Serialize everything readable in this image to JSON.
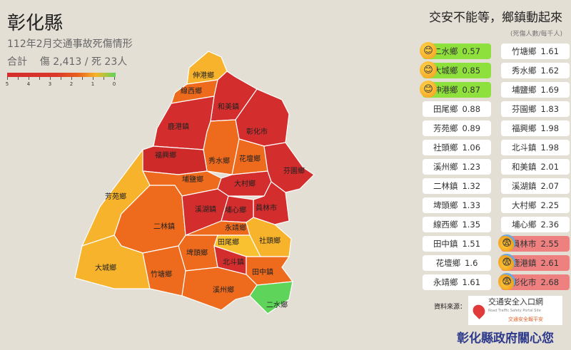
{
  "header": {
    "title": "彰化縣",
    "subtitle": "112年2月交通事故死傷情形",
    "total_label": "合計",
    "total_value": "傷 2,413 / 死 23人"
  },
  "legend": {
    "ticks": [
      "5",
      "4",
      "3",
      "2",
      "1",
      "0"
    ],
    "colors": [
      "#d42d2d",
      "#e8601e",
      "#f6b52a",
      "#5fd45a"
    ]
  },
  "slogan": "交安不能等，鄉鎮動起來",
  "unit": "(死傷人數/每千人)",
  "left_list": [
    {
      "name": "二水鄉",
      "value": "0.57",
      "status": "good"
    },
    {
      "name": "大城鄉",
      "value": "0.85",
      "status": "good"
    },
    {
      "name": "伸港鄉",
      "value": "0.87",
      "status": "good"
    },
    {
      "name": "田尾鄉",
      "value": "0.88"
    },
    {
      "name": "芳苑鄉",
      "value": "0.89"
    },
    {
      "name": "社頭鄉",
      "value": "1.06"
    },
    {
      "name": "溪州鄉",
      "value": "1.23"
    },
    {
      "name": "二林鎮",
      "value": "1.32"
    },
    {
      "name": "埤頭鄉",
      "value": "1.33"
    },
    {
      "name": "線西鄉",
      "value": "1.35"
    },
    {
      "name": "田中鎮",
      "value": "1.51"
    },
    {
      "name": "花壇鄉",
      "value": "1.6"
    },
    {
      "name": "永靖鄉",
      "value": "1.61"
    }
  ],
  "right_list": [
    {
      "name": "竹塘鄉",
      "value": "1.61"
    },
    {
      "name": "秀水鄉",
      "value": "1.62"
    },
    {
      "name": "埔鹽鄉",
      "value": "1.69"
    },
    {
      "name": "芬園鄉",
      "value": "1.83"
    },
    {
      "name": "福興鄉",
      "value": "1.98"
    },
    {
      "name": "北斗鎮",
      "value": "1.98"
    },
    {
      "name": "和美鎮",
      "value": "2.01"
    },
    {
      "name": "溪湖鎮",
      "value": "2.07"
    },
    {
      "name": "大村鄉",
      "value": "2.25"
    },
    {
      "name": "埔心鄉",
      "value": "2.36"
    },
    {
      "name": "員林市",
      "value": "2.55",
      "status": "bad"
    },
    {
      "name": "鹿港鎮",
      "value": "2.61",
      "status": "bad"
    },
    {
      "name": "彰化市",
      "value": "2.68",
      "status": "bad"
    }
  ],
  "map": {
    "regions": [
      {
        "name": "伸港鄉",
        "color": "#f7b32b"
      },
      {
        "name": "線西鄉",
        "color": "#ee6a1d"
      },
      {
        "name": "和美鎮",
        "color": "#d42d2d"
      },
      {
        "name": "鹿港鎮",
        "color": "#d42d2d"
      },
      {
        "name": "彰化市",
        "color": "#d42d2d"
      },
      {
        "name": "秀水鄉",
        "color": "#ee6a1d"
      },
      {
        "name": "花壇鄉",
        "color": "#ee6a1d"
      },
      {
        "name": "芬園鄉",
        "color": "#d42d2d"
      },
      {
        "name": "福興鄉",
        "color": "#cf2a2a"
      },
      {
        "name": "埔鹽鄉",
        "color": "#ee6a1d"
      },
      {
        "name": "大村鄉",
        "color": "#d42d2d"
      },
      {
        "name": "員林市",
        "color": "#d42d2d"
      },
      {
        "name": "芳苑鄉",
        "color": "#f7b32b"
      },
      {
        "name": "二林鎮",
        "color": "#ee6a1d"
      },
      {
        "name": "溪湖鎮",
        "color": "#d42d2d"
      },
      {
        "name": "埔心鄉",
        "color": "#d42d2d"
      },
      {
        "name": "永靖鄉",
        "color": "#ee6a1d"
      },
      {
        "name": "社頭鄉",
        "color": "#f7b32b"
      },
      {
        "name": "田尾鄉",
        "color": "#f9c12f"
      },
      {
        "name": "埤頭鄉",
        "color": "#ee6a1d"
      },
      {
        "name": "北斗鎮",
        "color": "#d42d2d"
      },
      {
        "name": "田中鎮",
        "color": "#ee6a1d"
      },
      {
        "name": "大城鄉",
        "color": "#f7b32b"
      },
      {
        "name": "竹塘鄉",
        "color": "#ee6a1d"
      },
      {
        "name": "溪州鄉",
        "color": "#ee6a1d"
      },
      {
        "name": "二水鄉",
        "color": "#5fd45a"
      }
    ]
  },
  "source": {
    "label": "資料來源：",
    "logo_title": "交通安全入口網",
    "logo_sub": "Road Traffic Safety Portal Site",
    "logo_tag": "交通安全報平安"
  },
  "footer": "彰化縣政府關心您"
}
